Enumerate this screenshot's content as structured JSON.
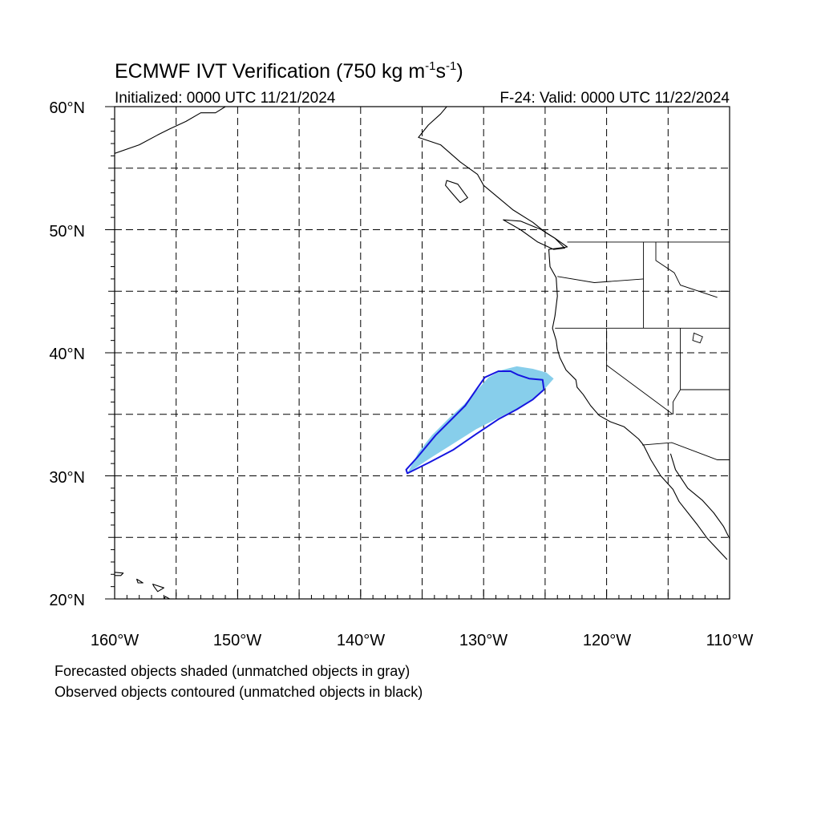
{
  "title": {
    "main": "ECMWF IVT Verification (750 kg m",
    "exp1": "-1",
    "mid": "s",
    "exp2": "-1",
    "end": ")"
  },
  "subtitle": {
    "left": "Initialized: 0000 UTC 11/21/2024",
    "right": "F-24: Valid: 0000 UTC 11/22/2024"
  },
  "notes": [
    "Forecasted objects shaded (unmatched objects in gray)",
    "Observed objects contoured (unmatched objects in black)"
  ],
  "colors": {
    "forecast_fill": "#87ceeb",
    "observed_contour": "#1515e0",
    "background": "#ffffff",
    "lines": "#000000"
  },
  "map": {
    "lon_range": [
      -160,
      -110
    ],
    "lat_range": [
      20,
      60
    ],
    "lon_labels": [
      "160°W",
      "150°W",
      "140°W",
      "130°W",
      "120°W",
      "110°W"
    ],
    "lat_labels": [
      "20°N",
      "30°N",
      "40°N",
      "50°N",
      "60°N"
    ],
    "grid": "dashed every 5 degrees",
    "forecast_object": [
      [
        -136.2,
        30.2
      ],
      [
        -134.4,
        31.4
      ],
      [
        -132.5,
        32.6
      ],
      [
        -130.6,
        33.8
      ],
      [
        -128.6,
        34.8
      ],
      [
        -127.0,
        35.6
      ],
      [
        -125.9,
        36.3
      ],
      [
        -125.0,
        37.1
      ],
      [
        -124.3,
        37.9
      ],
      [
        -124.9,
        38.4
      ],
      [
        -126.0,
        38.7
      ],
      [
        -127.3,
        38.9
      ],
      [
        -128.5,
        38.6
      ],
      [
        -129.6,
        38.0
      ],
      [
        -130.5,
        37.0
      ],
      [
        -131.6,
        35.8
      ],
      [
        -132.8,
        34.7
      ],
      [
        -134.2,
        33.3
      ],
      [
        -135.3,
        31.9
      ]
    ],
    "observed_object": [
      [
        -136.2,
        30.2
      ],
      [
        -134.4,
        31.1
      ],
      [
        -132.5,
        32.1
      ],
      [
        -130.6,
        33.4
      ],
      [
        -128.8,
        34.6
      ],
      [
        -127.3,
        35.4
      ],
      [
        -126.0,
        36.2
      ],
      [
        -125.1,
        37.0
      ],
      [
        -125.2,
        37.8
      ],
      [
        -126.3,
        37.9
      ],
      [
        -127.2,
        38.2
      ],
      [
        -127.8,
        38.5
      ],
      [
        -128.8,
        38.5
      ],
      [
        -129.9,
        38.0
      ],
      [
        -130.6,
        37.0
      ],
      [
        -131.5,
        35.7
      ],
      [
        -132.6,
        34.6
      ],
      [
        -133.9,
        33.3
      ],
      [
        -135.4,
        31.5
      ],
      [
        -136.3,
        30.5
      ]
    ],
    "coastline": [
      [
        -133.0,
        60.0
      ],
      [
        -133.5,
        59.4
      ],
      [
        -134.5,
        58.5
      ],
      [
        -135.3,
        57.5
      ],
      [
        -133.5,
        56.9
      ],
      [
        -131.9,
        55.5
      ],
      [
        -130.5,
        54.5
      ],
      [
        -130.0,
        53.6
      ],
      [
        -128.8,
        52.6
      ],
      [
        -127.6,
        51.6
      ],
      [
        -126.0,
        50.6
      ],
      [
        -125.0,
        49.8
      ],
      [
        -124.2,
        49.3
      ],
      [
        -123.2,
        48.6
      ],
      [
        -124.7,
        48.4
      ],
      [
        -124.6,
        47.0
      ],
      [
        -124.1,
        46.1
      ],
      [
        -124.0,
        44.6
      ],
      [
        -124.2,
        43.0
      ],
      [
        -124.4,
        42.0
      ],
      [
        -124.1,
        41.0
      ],
      [
        -124.0,
        40.3
      ],
      [
        -123.8,
        39.6
      ],
      [
        -123.3,
        38.6
      ],
      [
        -122.5,
        37.8
      ],
      [
        -122.4,
        37.2
      ],
      [
        -121.9,
        36.6
      ],
      [
        -121.3,
        35.7
      ],
      [
        -120.6,
        34.9
      ],
      [
        -119.7,
        34.4
      ],
      [
        -118.6,
        34.0
      ],
      [
        -117.4,
        33.0
      ],
      [
        -117.0,
        32.5
      ],
      [
        -116.4,
        31.3
      ],
      [
        -115.6,
        30.0
      ],
      [
        -114.6,
        28.9
      ],
      [
        -114.1,
        27.9
      ],
      [
        -112.6,
        26.0
      ],
      [
        -111.8,
        24.9
      ],
      [
        -110.2,
        23.2
      ]
    ],
    "gulf_coast": [
      [
        -114.8,
        31.8
      ],
      [
        -114.4,
        30.5
      ],
      [
        -113.4,
        29.0
      ],
      [
        -112.2,
        28.0
      ],
      [
        -111.3,
        27.0
      ],
      [
        -110.5,
        25.9
      ],
      [
        -110.0,
        24.9
      ]
    ],
    "alaska_coast": [
      [
        -160.0,
        56.2
      ],
      [
        -158.0,
        56.9
      ],
      [
        -156.5,
        57.7
      ],
      [
        -155.5,
        58.2
      ],
      [
        -154.2,
        58.8
      ],
      [
        -153.0,
        59.5
      ],
      [
        -151.8,
        59.5
      ],
      [
        -151.0,
        60.0
      ]
    ],
    "island_bc": [
      [
        -128.4,
        50.8
      ],
      [
        -127.0,
        50.0
      ],
      [
        -125.6,
        49.0
      ],
      [
        -124.3,
        48.4
      ],
      [
        -123.4,
        48.5
      ],
      [
        -124.2,
        49.3
      ],
      [
        -125.3,
        50.0
      ],
      [
        -127.0,
        50.7
      ]
    ],
    "island_haida": [
      [
        -133.0,
        54.0
      ],
      [
        -132.1,
        53.7
      ],
      [
        -131.3,
        52.6
      ],
      [
        -131.9,
        52.2
      ],
      [
        -132.6,
        53.0
      ],
      [
        -133.1,
        53.6
      ]
    ],
    "hawaii": [
      [
        [
          -160.4,
          22.2
        ],
        [
          -159.3,
          22.1
        ],
        [
          -159.5,
          21.9
        ],
        [
          -160.2,
          21.9
        ]
      ],
      [
        [
          -158.2,
          21.6
        ],
        [
          -157.7,
          21.3
        ],
        [
          -158.1,
          21.3
        ]
      ],
      [
        [
          -156.9,
          21.2
        ],
        [
          -156.0,
          20.9
        ],
        [
          -156.5,
          20.6
        ],
        [
          -156.8,
          21.0
        ]
      ],
      [
        [
          -155.9,
          20.2
        ],
        [
          -154.8,
          19.6
        ],
        [
          -155.6,
          19.0
        ],
        [
          -156.0,
          19.6
        ]
      ]
    ],
    "borders": [
      [
        [
          -123.2,
          49.0
        ],
        [
          -110.0,
          49.0
        ]
      ],
      [
        [
          -117.0,
          49.0
        ],
        [
          -117.0,
          42.0
        ]
      ],
      [
        [
          -124.2,
          42.0
        ],
        [
          -110.0,
          42.0
        ]
      ],
      [
        [
          -124.0,
          46.2
        ],
        [
          -121.0,
          45.7
        ],
        [
          -117.0,
          46.0
        ]
      ],
      [
        [
          -120.0,
          42.0
        ],
        [
          -120.0,
          39.0
        ],
        [
          -114.6,
          35.0
        ]
      ],
      [
        [
          -114.0,
          42.0
        ],
        [
          -114.0,
          37.0
        ],
        [
          -114.6,
          36.0
        ],
        [
          -114.6,
          35.0
        ]
      ],
      [
        [
          -114.0,
          37.0
        ],
        [
          -110.0,
          37.0
        ]
      ],
      [
        [
          -117.1,
          32.5
        ],
        [
          -114.7,
          32.7
        ],
        [
          -111.0,
          31.3
        ],
        [
          -110.0,
          31.3
        ]
      ],
      [
        [
          -111.0,
          45.0
        ],
        [
          -110.0,
          45.0
        ]
      ],
      [
        [
          -116.0,
          49.0
        ],
        [
          -116.0,
          47.5
        ],
        [
          -114.5,
          46.5
        ],
        [
          -114.0,
          45.5
        ],
        [
          -111.0,
          44.5
        ]
      ]
    ],
    "lakes": [
      [
        [
          -112.9,
          41.6
        ],
        [
          -112.2,
          41.3
        ],
        [
          -112.4,
          40.8
        ],
        [
          -113.0,
          41.0
        ]
      ]
    ]
  }
}
